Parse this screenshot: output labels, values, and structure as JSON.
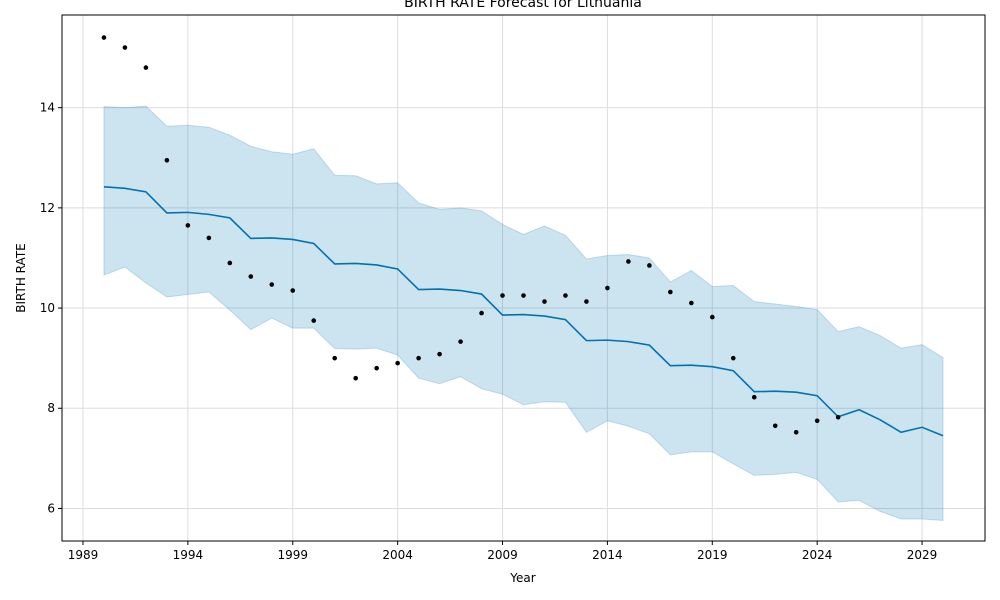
{
  "chart_data": {
    "type": "line",
    "title": "BIRTH RATE Forecast for Lithuania",
    "xlabel": "Year",
    "ylabel": "BIRTH RATE",
    "xlim": [
      1988,
      2032
    ],
    "ylim": [
      5.35,
      15.85
    ],
    "xticks": [
      1989,
      1994,
      1999,
      2004,
      2009,
      2014,
      2019,
      2024,
      2029
    ],
    "yticks": [
      6,
      8,
      10,
      12,
      14
    ],
    "grid": true,
    "colors": {
      "forecast": "#0072B2",
      "interval": "#0072B2",
      "actual": "#000000",
      "grid": "#dddddd"
    },
    "actual": {
      "x": [
        1990,
        1991,
        1992,
        1993,
        1994,
        1995,
        1996,
        1997,
        1998,
        1999,
        2000,
        2001,
        2002,
        2003,
        2004,
        2005,
        2006,
        2007,
        2008,
        2009,
        2010,
        2011,
        2012,
        2013,
        2014,
        2015,
        2016,
        2017,
        2018,
        2019,
        2020,
        2021,
        2022,
        2023,
        2024,
        2025
      ],
      "y": [
        15.4,
        15.2,
        14.8,
        12.95,
        11.65,
        11.4,
        10.9,
        10.63,
        10.47,
        10.35,
        9.75,
        9.0,
        8.6,
        8.8,
        8.9,
        9.0,
        9.08,
        9.33,
        9.9,
        10.25,
        10.25,
        10.13,
        10.25,
        10.13,
        10.4,
        10.93,
        10.85,
        10.32,
        10.1,
        9.82,
        9.0,
        8.22,
        7.65,
        7.52,
        7.75,
        7.82
      ]
    },
    "forecast": {
      "x": [
        1990,
        1991,
        1992,
        1993,
        1994,
        1995,
        1996,
        1997,
        1998,
        1999,
        2000,
        2001,
        2002,
        2003,
        2004,
        2005,
        2006,
        2007,
        2008,
        2009,
        2010,
        2011,
        2012,
        2013,
        2014,
        2015,
        2016,
        2017,
        2018,
        2019,
        2020,
        2021,
        2022,
        2023,
        2024,
        2025,
        2026,
        2027,
        2028,
        2029,
        2030
      ],
      "yhat": [
        12.42,
        12.39,
        12.32,
        11.9,
        11.91,
        11.87,
        11.8,
        11.39,
        11.4,
        11.37,
        11.29,
        10.88,
        10.89,
        10.86,
        10.78,
        10.37,
        10.38,
        10.35,
        10.28,
        9.86,
        9.87,
        9.84,
        9.77,
        9.35,
        9.36,
        9.33,
        9.26,
        8.85,
        8.86,
        8.83,
        8.75,
        8.33,
        8.34,
        8.32,
        8.25,
        7.83,
        7.97,
        7.77,
        7.52,
        7.62,
        7.45
      ],
      "upper": [
        14.02,
        14.0,
        14.03,
        13.63,
        13.65,
        13.61,
        13.45,
        13.23,
        13.12,
        13.07,
        13.18,
        12.65,
        12.64,
        12.48,
        12.5,
        12.1,
        11.97,
        12.0,
        11.94,
        11.67,
        11.47,
        11.64,
        11.45,
        10.98,
        11.05,
        11.07,
        11.0,
        10.52,
        10.75,
        10.43,
        10.45,
        10.13,
        10.08,
        10.03,
        9.97,
        9.53,
        9.63,
        9.45,
        9.2,
        9.27,
        9.01
      ],
      "lower": [
        10.66,
        10.82,
        10.5,
        10.22,
        10.27,
        10.32,
        9.96,
        9.57,
        9.8,
        9.6,
        9.6,
        9.19,
        9.18,
        9.2,
        9.06,
        8.6,
        8.49,
        8.63,
        8.39,
        8.28,
        8.07,
        8.13,
        8.12,
        7.52,
        7.75,
        7.64,
        7.49,
        7.07,
        7.13,
        7.13,
        6.89,
        6.66,
        6.68,
        6.72,
        6.58,
        6.13,
        6.16,
        5.94,
        5.79,
        5.79,
        5.76
      ]
    }
  }
}
